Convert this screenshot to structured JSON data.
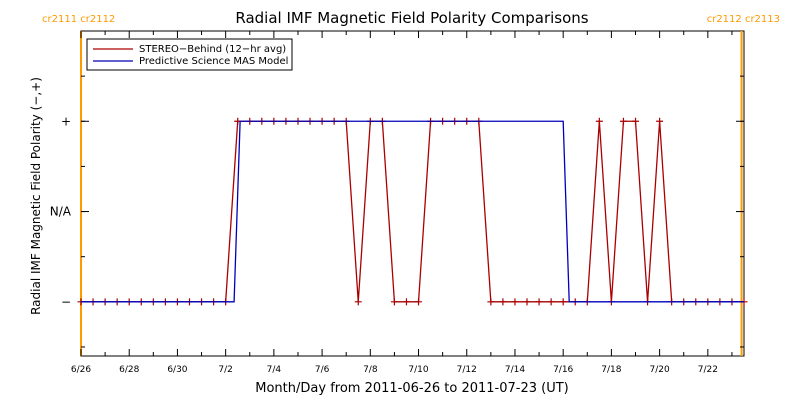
{
  "chart_data": {
    "type": "line",
    "title": "Radial IMF Magnetic Field Polarity Comparisons",
    "xlabel": "Month/Day from 2011-06-26 to 2011-07-23 (UT)",
    "ylabel": "Radial IMF Magnetic Field Polarity (−,+)",
    "x_unit": "days since 2011-06-26",
    "xlim": [
      0,
      27.5
    ],
    "ylim": [
      -1.6,
      2.0
    ],
    "y_ticks": [
      {
        "v": -1,
        "label": "−"
      },
      {
        "v": 0,
        "label": "N/A"
      },
      {
        "v": 1,
        "label": "+"
      }
    ],
    "x_ticks": [
      {
        "v": 0,
        "label": "6/26"
      },
      {
        "v": 2,
        "label": "6/28"
      },
      {
        "v": 4,
        "label": "6/30"
      },
      {
        "v": 6,
        "label": "7/2"
      },
      {
        "v": 8,
        "label": "7/4"
      },
      {
        "v": 10,
        "label": "7/6"
      },
      {
        "v": 12,
        "label": "7/8"
      },
      {
        "v": 14,
        "label": "7/10"
      },
      {
        "v": 16,
        "label": "7/12"
      },
      {
        "v": 18,
        "label": "7/14"
      },
      {
        "v": 20,
        "label": "7/16"
      },
      {
        "v": 22,
        "label": "7/18"
      },
      {
        "v": 24,
        "label": "7/20"
      },
      {
        "v": 26,
        "label": "7/22"
      }
    ],
    "carrington_markers": [
      {
        "x": 0,
        "label": "cr2111 cr2112",
        "color": "#ff9900",
        "side": "left"
      },
      {
        "x": 27.4,
        "label": "cr2112 cr2113",
        "color": "#ff9900",
        "side": "right"
      }
    ],
    "legend_position": "top-left",
    "series": [
      {
        "name": "STEREO−Behind (12−hr avg)",
        "color": "#aa0000",
        "markers": true,
        "x": [
          0,
          0.5,
          1,
          1.5,
          2,
          2.5,
          3,
          3.5,
          4,
          4.5,
          5,
          5.5,
          6,
          6.5,
          7,
          7.5,
          8,
          8.5,
          9,
          9.5,
          10,
          10.5,
          11,
          11.5,
          12,
          12.5,
          13,
          13.5,
          14,
          14.5,
          15,
          15.5,
          16,
          16.5,
          17,
          17.5,
          18,
          18.5,
          19,
          19.5,
          20,
          20.5,
          21,
          21.5,
          22,
          22.5,
          23,
          23.5,
          24,
          24.5,
          25,
          25.5,
          26,
          26.5,
          27,
          27.5
        ],
        "y": [
          -1,
          -1,
          -1,
          -1,
          -1,
          -1,
          -1,
          -1,
          -1,
          -1,
          -1,
          -1,
          -1,
          1,
          1,
          1,
          1,
          1,
          1,
          1,
          1,
          1,
          1,
          -1,
          1,
          1,
          -1,
          -1,
          -1,
          1,
          1,
          1,
          1,
          1,
          -1,
          -1,
          -1,
          -1,
          -1,
          -1,
          -1,
          -1,
          -1,
          1,
          -1,
          1,
          1,
          -1,
          1,
          -1,
          -1,
          -1,
          -1,
          -1,
          -1,
          -1
        ]
      },
      {
        "name": "Predictive Science MAS Model",
        "color": "#0000bb",
        "markers": false,
        "x": [
          0,
          6.35,
          6.6,
          20.0,
          20.25,
          27.5
        ],
        "y": [
          -1,
          -1,
          1,
          1,
          -1,
          -1
        ]
      }
    ]
  }
}
